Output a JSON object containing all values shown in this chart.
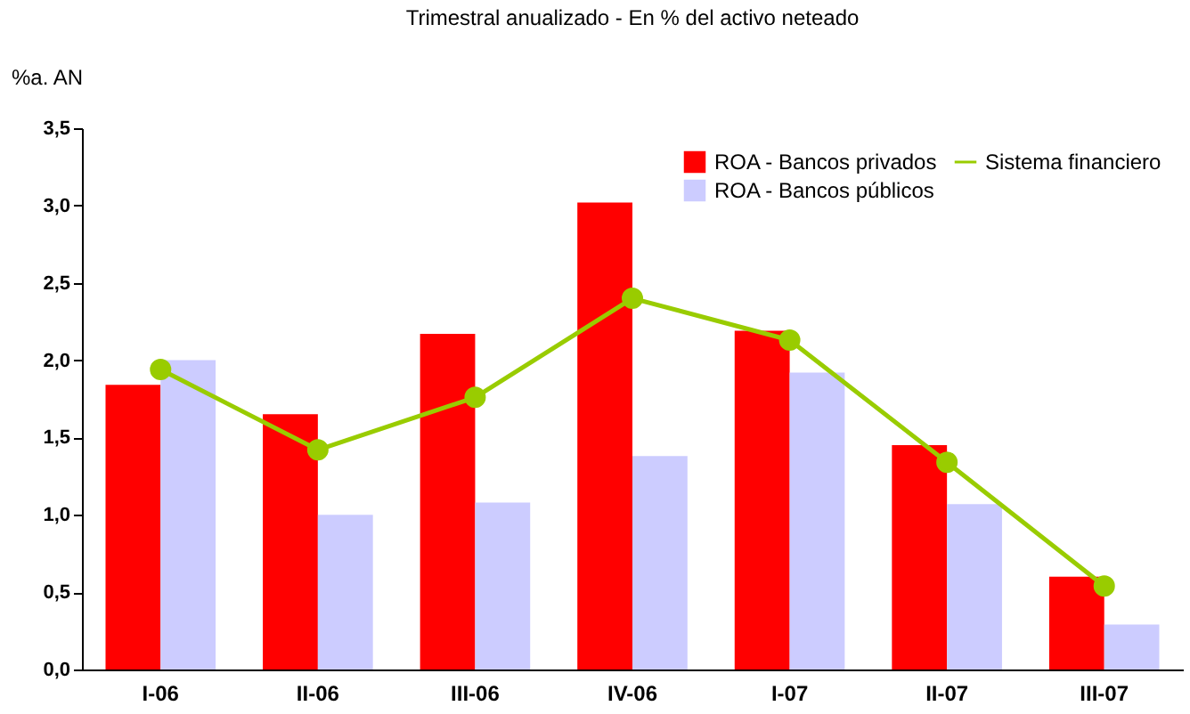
{
  "chart_data": {
    "type": "bar",
    "title": "Trimestral anualizado - En % del activo neteado",
    "ylabel": "%a. AN",
    "categories": [
      "I-06",
      "II-06",
      "III-06",
      "IV-06",
      "I-07",
      "II-07",
      "III-07"
    ],
    "series": [
      {
        "name": "ROA - Bancos privados",
        "color": "#ff0000",
        "values": [
          1.84,
          1.65,
          2.17,
          3.02,
          2.19,
          1.45,
          0.6
        ]
      },
      {
        "name": "ROA - Bancos públicos",
        "color": "#ccccff",
        "values": [
          2.0,
          1.0,
          1.08,
          1.38,
          1.92,
          1.07,
          0.29
        ]
      },
      {
        "name": "Sistema financiero",
        "type": "line",
        "color": "#99cc00",
        "values": [
          1.94,
          1.42,
          1.76,
          2.4,
          2.13,
          1.34,
          0.54
        ]
      }
    ],
    "ylim": [
      0,
      3.5
    ],
    "yticks": [
      {
        "value": 0,
        "label": "0,0"
      },
      {
        "value": 0.5,
        "label": "0,5"
      },
      {
        "value": 1,
        "label": "1,0"
      },
      {
        "value": 1.5,
        "label": "1,5"
      },
      {
        "value": 2,
        "label": "2,0"
      },
      {
        "value": 2.5,
        "label": "2,5"
      },
      {
        "value": 3,
        "label": "3,0"
      },
      {
        "value": 3.5,
        "label": "3,5"
      }
    ],
    "grid": false,
    "legend": "top right",
    "marker": "circle",
    "line_style": "solid"
  }
}
